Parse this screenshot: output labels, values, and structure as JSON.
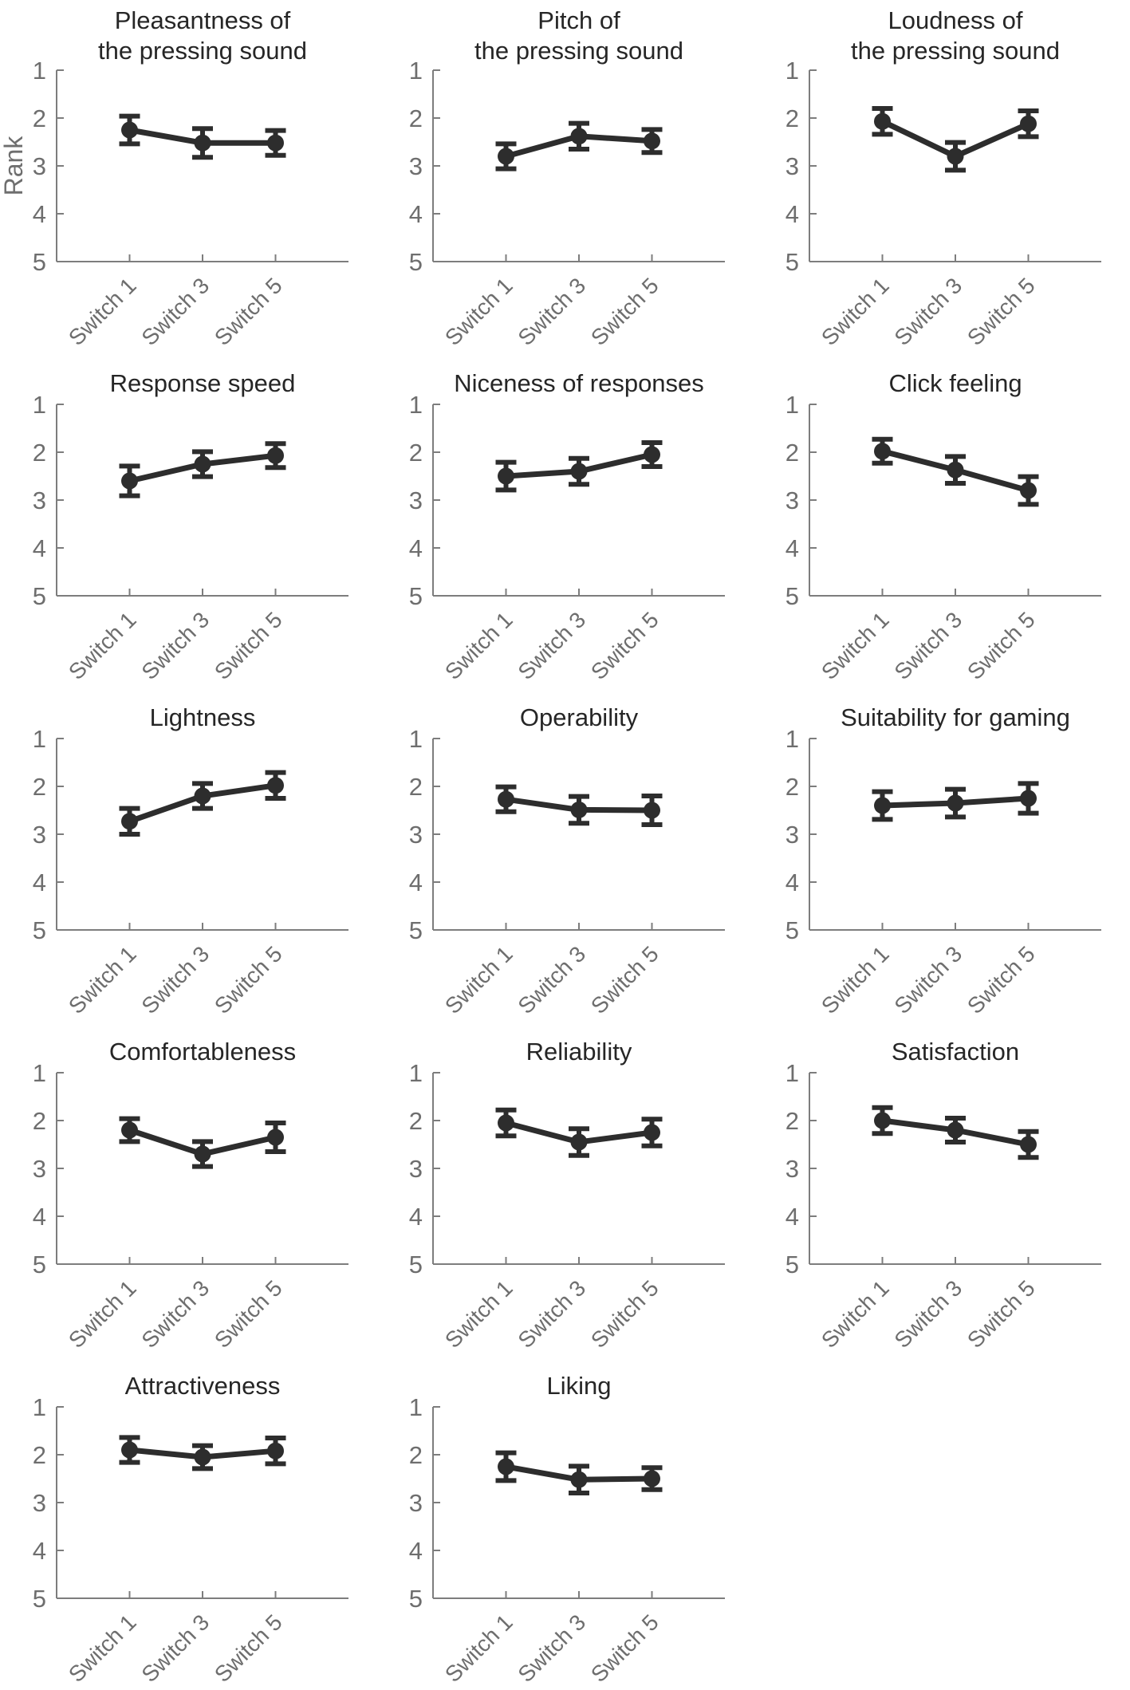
{
  "figure": {
    "ylabel": "Rank",
    "x_categories": [
      "Switch 1",
      "Switch 3",
      "Switch 5"
    ],
    "y_axis": {
      "min": 1,
      "max": 5,
      "ticks": [
        1,
        2,
        3,
        4,
        5
      ],
      "reversed": true
    },
    "grid": "off",
    "legend": "none",
    "colors": {
      "data": "#2d2d2d",
      "axis_line": "#7d7d7d",
      "tick_text": "#6e6e6e",
      "title_text": "#262626",
      "background": "#ffffff"
    }
  },
  "chart_data": [
    {
      "type": "line",
      "slug": "pleasantness-of-the-pressing-sound",
      "title": "Pleasantness of the pressing sound",
      "title_lines": [
        "Pleasantness of",
        "the pressing sound"
      ],
      "categories": [
        "Switch 1",
        "Switch 3",
        "Switch 5"
      ],
      "values": [
        2.25,
        2.52,
        2.52
      ],
      "errors": [
        0.29,
        0.3,
        0.26
      ],
      "ylim": [
        1,
        5
      ],
      "y_reversed": true,
      "show_ylabel": true
    },
    {
      "type": "line",
      "slug": "pitch-of-the-pressing-sound",
      "title": "Pitch of the pressing sound",
      "title_lines": [
        "Pitch of",
        "the pressing sound"
      ],
      "categories": [
        "Switch 1",
        "Switch 3",
        "Switch 5"
      ],
      "values": [
        2.8,
        2.38,
        2.48
      ],
      "errors": [
        0.26,
        0.27,
        0.24
      ],
      "ylim": [
        1,
        5
      ],
      "y_reversed": true,
      "show_ylabel": false
    },
    {
      "type": "line",
      "slug": "loudness-of-the-pressing-sound",
      "title": "Loudness of the pressing sound",
      "title_lines": [
        "Loudness of",
        "the pressing sound"
      ],
      "categories": [
        "Switch 1",
        "Switch 3",
        "Switch 5"
      ],
      "values": [
        2.07,
        2.8,
        2.12
      ],
      "errors": [
        0.27,
        0.29,
        0.27
      ],
      "ylim": [
        1,
        5
      ],
      "y_reversed": true,
      "show_ylabel": false
    },
    {
      "type": "line",
      "slug": "response-speed",
      "title": "Response speed",
      "title_lines": [
        "Response speed"
      ],
      "categories": [
        "Switch 1",
        "Switch 3",
        "Switch 5"
      ],
      "values": [
        2.6,
        2.25,
        2.07
      ],
      "errors": [
        0.31,
        0.26,
        0.25
      ],
      "ylim": [
        1,
        5
      ],
      "y_reversed": true,
      "show_ylabel": false
    },
    {
      "type": "line",
      "slug": "niceness-of-responses",
      "title": "Niceness of responses",
      "title_lines": [
        "Niceness of responses"
      ],
      "categories": [
        "Switch 1",
        "Switch 3",
        "Switch 5"
      ],
      "values": [
        2.5,
        2.4,
        2.05
      ],
      "errors": [
        0.29,
        0.27,
        0.25
      ],
      "ylim": [
        1,
        5
      ],
      "y_reversed": true,
      "show_ylabel": false
    },
    {
      "type": "line",
      "slug": "click-feeling",
      "title": "Click feeling",
      "title_lines": [
        "Click feeling"
      ],
      "categories": [
        "Switch 1",
        "Switch 3",
        "Switch 5"
      ],
      "values": [
        1.98,
        2.37,
        2.8
      ],
      "errors": [
        0.25,
        0.28,
        0.29
      ],
      "ylim": [
        1,
        5
      ],
      "y_reversed": true,
      "show_ylabel": false
    },
    {
      "type": "line",
      "slug": "lightness",
      "title": "Lightness",
      "title_lines": [
        "Lightness"
      ],
      "categories": [
        "Switch 1",
        "Switch 3",
        "Switch 5"
      ],
      "values": [
        2.73,
        2.2,
        1.98
      ],
      "errors": [
        0.27,
        0.26,
        0.27
      ],
      "ylim": [
        1,
        5
      ],
      "y_reversed": true,
      "show_ylabel": false
    },
    {
      "type": "line",
      "slug": "operability",
      "title": "Operability",
      "title_lines": [
        "Operability"
      ],
      "categories": [
        "Switch 1",
        "Switch 3",
        "Switch 5"
      ],
      "values": [
        2.27,
        2.49,
        2.5
      ],
      "errors": [
        0.26,
        0.28,
        0.3
      ],
      "ylim": [
        1,
        5
      ],
      "y_reversed": true,
      "show_ylabel": false
    },
    {
      "type": "line",
      "slug": "suitability-for-gaming",
      "title": "Suitability for gaming",
      "title_lines": [
        "Suitability for gaming"
      ],
      "categories": [
        "Switch 1",
        "Switch 3",
        "Switch 5"
      ],
      "values": [
        2.4,
        2.35,
        2.25
      ],
      "errors": [
        0.29,
        0.29,
        0.31
      ],
      "ylim": [
        1,
        5
      ],
      "y_reversed": true,
      "show_ylabel": false
    },
    {
      "type": "line",
      "slug": "comfortableness",
      "title": "Comfortableness",
      "title_lines": [
        "Comfortableness"
      ],
      "categories": [
        "Switch 1",
        "Switch 3",
        "Switch 5"
      ],
      "values": [
        2.2,
        2.7,
        2.35
      ],
      "errors": [
        0.24,
        0.26,
        0.3
      ],
      "ylim": [
        1,
        5
      ],
      "y_reversed": true,
      "show_ylabel": false
    },
    {
      "type": "line",
      "slug": "reliability",
      "title": "Reliability",
      "title_lines": [
        "Reliability"
      ],
      "categories": [
        "Switch 1",
        "Switch 3",
        "Switch 5"
      ],
      "values": [
        2.05,
        2.45,
        2.25
      ],
      "errors": [
        0.27,
        0.28,
        0.28
      ],
      "ylim": [
        1,
        5
      ],
      "y_reversed": true,
      "show_ylabel": false
    },
    {
      "type": "line",
      "slug": "satisfaction",
      "title": "Satisfaction",
      "title_lines": [
        "Satisfaction"
      ],
      "categories": [
        "Switch 1",
        "Switch 3",
        "Switch 5"
      ],
      "values": [
        2.0,
        2.2,
        2.5
      ],
      "errors": [
        0.27,
        0.25,
        0.27
      ],
      "ylim": [
        1,
        5
      ],
      "y_reversed": true,
      "show_ylabel": false
    },
    {
      "type": "line",
      "slug": "attractiveness",
      "title": "Attractiveness",
      "title_lines": [
        "Attractiveness"
      ],
      "categories": [
        "Switch 1",
        "Switch 3",
        "Switch 5"
      ],
      "values": [
        1.9,
        2.05,
        1.92
      ],
      "errors": [
        0.26,
        0.24,
        0.27
      ],
      "ylim": [
        1,
        5
      ],
      "y_reversed": true,
      "show_ylabel": false
    },
    {
      "type": "line",
      "slug": "liking",
      "title": "Liking",
      "title_lines": [
        "Liking"
      ],
      "categories": [
        "Switch 1",
        "Switch 3",
        "Switch 5"
      ],
      "values": [
        2.25,
        2.52,
        2.5
      ],
      "errors": [
        0.29,
        0.28,
        0.23
      ],
      "ylim": [
        1,
        5
      ],
      "y_reversed": true,
      "show_ylabel": false
    }
  ]
}
